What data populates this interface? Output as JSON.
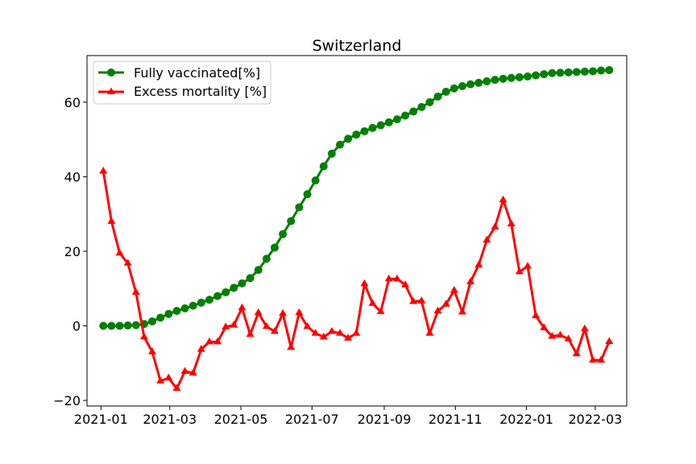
{
  "chart_data": {
    "type": "line",
    "title": "Switzerland",
    "xlabel": "",
    "ylabel": "",
    "x_axis": {
      "type": "date",
      "range": [
        "2020-12-20",
        "2022-03-28"
      ],
      "ticks": [
        {
          "date": "2021-01-01",
          "label": "2021-01"
        },
        {
          "date": "2021-03-01",
          "label": "2021-03"
        },
        {
          "date": "2021-05-01",
          "label": "2021-05"
        },
        {
          "date": "2021-07-01",
          "label": "2021-07"
        },
        {
          "date": "2021-09-01",
          "label": "2021-09"
        },
        {
          "date": "2021-11-01",
          "label": "2021-11"
        },
        {
          "date": "2022-01-01",
          "label": "2022-01"
        },
        {
          "date": "2022-03-01",
          "label": "2022-03"
        }
      ]
    },
    "y_axis": {
      "range": [
        -21.5,
        72.5
      ],
      "ticks": [
        -20,
        0,
        20,
        40,
        60
      ],
      "tick_labels": [
        "−20",
        "0",
        "20",
        "40",
        "60"
      ]
    },
    "grid": false,
    "legend": "top-left",
    "x": [
      "2021-01-03",
      "2021-01-10",
      "2021-01-17",
      "2021-01-24",
      "2021-01-31",
      "2021-02-07",
      "2021-02-14",
      "2021-02-21",
      "2021-02-28",
      "2021-03-07",
      "2021-03-14",
      "2021-03-21",
      "2021-03-28",
      "2021-04-04",
      "2021-04-11",
      "2021-04-18",
      "2021-04-25",
      "2021-05-02",
      "2021-05-09",
      "2021-05-16",
      "2021-05-23",
      "2021-05-30",
      "2021-06-06",
      "2021-06-13",
      "2021-06-20",
      "2021-06-27",
      "2021-07-04",
      "2021-07-11",
      "2021-07-18",
      "2021-07-25",
      "2021-08-01",
      "2021-08-08",
      "2021-08-15",
      "2021-08-22",
      "2021-08-29",
      "2021-09-05",
      "2021-09-12",
      "2021-09-19",
      "2021-09-26",
      "2021-10-03",
      "2021-10-10",
      "2021-10-17",
      "2021-10-24",
      "2021-10-31",
      "2021-11-07",
      "2021-11-14",
      "2021-11-21",
      "2021-11-28",
      "2021-12-05",
      "2021-12-12",
      "2021-12-19",
      "2021-12-26",
      "2022-01-02",
      "2022-01-09",
      "2022-01-16",
      "2022-01-23",
      "2022-01-30",
      "2022-02-06",
      "2022-02-13",
      "2022-02-20",
      "2022-02-27",
      "2022-03-06",
      "2022-03-13"
    ],
    "series": [
      {
        "name": "Fully vaccinated[%]",
        "color": "#008000",
        "marker": "circle",
        "values": [
          0.0,
          0.0,
          0.0,
          0.1,
          0.2,
          0.5,
          1.2,
          2.2,
          3.2,
          4.0,
          4.7,
          5.4,
          6.2,
          7.0,
          8.0,
          9.0,
          10.2,
          11.4,
          12.8,
          15.0,
          18.0,
          21.0,
          24.6,
          28.1,
          31.8,
          35.3,
          39.0,
          42.8,
          46.2,
          48.6,
          50.2,
          51.3,
          52.2,
          53.1,
          53.8,
          54.6,
          55.4,
          56.4,
          57.5,
          58.7,
          60.0,
          61.5,
          62.8,
          63.7,
          64.3,
          64.8,
          65.2,
          65.6,
          66.0,
          66.3,
          66.5,
          66.7,
          66.9,
          67.2,
          67.5,
          67.8,
          67.9,
          68.0,
          68.1,
          68.2,
          68.3,
          68.5,
          68.6
        ]
      },
      {
        "name": "Excess mortality [%]",
        "color": "#ff0000",
        "marker": "triangle",
        "values": [
          41.5,
          28.0,
          19.5,
          16.8,
          9.0,
          -3.0,
          -7.0,
          -14.8,
          -14.0,
          -16.8,
          -12.2,
          -12.7,
          -6.3,
          -4.3,
          -4.3,
          -0.3,
          0.2,
          4.8,
          -2.3,
          3.5,
          -0.2,
          -1.5,
          3.3,
          -5.8,
          3.5,
          -0.2,
          -2.0,
          -3.0,
          -1.5,
          -2.0,
          -3.3,
          -2.0,
          11.3,
          6.0,
          3.8,
          12.6,
          12.6,
          11.0,
          6.5,
          6.7,
          -2.0,
          4.0,
          5.8,
          9.5,
          3.7,
          11.8,
          16.3,
          23.0,
          26.5,
          33.8,
          27.3,
          14.5,
          16.0,
          2.7,
          -0.5,
          -2.8,
          -2.5,
          -3.5,
          -7.5,
          -0.8,
          -9.2,
          -9.2,
          -4.2
        ]
      }
    ]
  }
}
